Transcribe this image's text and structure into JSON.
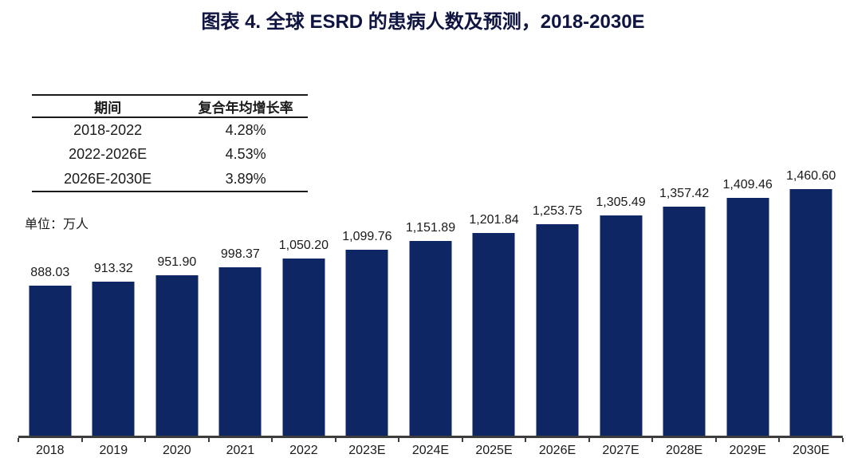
{
  "title": "图表 4. 全球 ESRD 的患病人数及预测，2018-2030E",
  "unit_label": "单位：万人",
  "cagr_table": {
    "headers": [
      "期间",
      "复合年均增长率"
    ],
    "rows": [
      [
        "2018-2022",
        "4.28%"
      ],
      [
        "2022-2026E",
        "4.53%"
      ],
      [
        "2026E-2030E",
        "3.89%"
      ]
    ]
  },
  "colors": {
    "bar": "#0e2663",
    "title_text": "#0f1440",
    "text": "#1a1a1a",
    "axis": "#3d3d3d"
  },
  "chart_data": {
    "type": "bar",
    "title": "图表 4. 全球 ESRD 的患病人数及预测，2018-2030E",
    "unit": "万人",
    "categories": [
      "2018",
      "2019",
      "2020",
      "2021",
      "2022",
      "2023E",
      "2024E",
      "2025E",
      "2026E",
      "2027E",
      "2028E",
      "2029E",
      "2030E"
    ],
    "values": [
      888.03,
      913.32,
      951.9,
      998.37,
      1050.2,
      1099.76,
      1151.89,
      1201.84,
      1253.75,
      1305.49,
      1357.42,
      1409.46,
      1460.6
    ],
    "value_labels": [
      "888.03",
      "913.32",
      "951.90",
      "998.37",
      "1,050.20",
      "1,099.76",
      "1,151.89",
      "1,201.84",
      "1,253.75",
      "1,305.49",
      "1,357.42",
      "1,409.46",
      "1,460.60"
    ],
    "xlabel": "",
    "ylabel": "",
    "ylim": [
      0,
      1500
    ],
    "grid": false,
    "legend": false,
    "data_labels": true,
    "cagr_annotations": [
      {
        "period": "2018-2022",
        "value": "4.28%"
      },
      {
        "period": "2022-2026E",
        "value": "4.53%"
      },
      {
        "period": "2026E-2030E",
        "value": "3.89%"
      }
    ]
  }
}
